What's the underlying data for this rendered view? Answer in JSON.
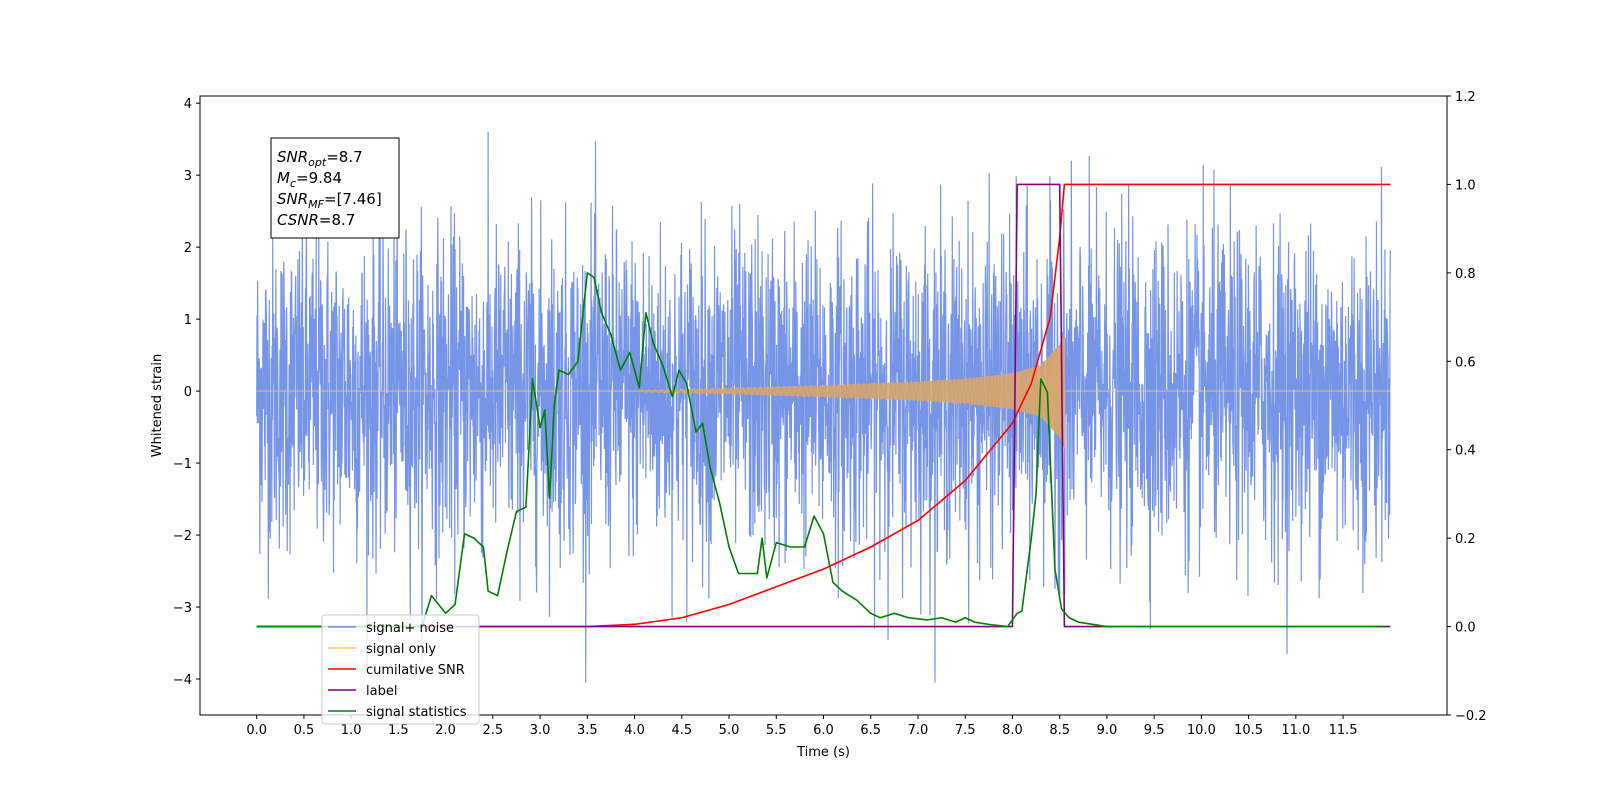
{
  "chart_data": {
    "type": "line",
    "xlabel": "Time (s)",
    "ylabel": "Whitened strain",
    "xlim": [
      -0.6,
      12.6
    ],
    "ylim": [
      -4.5,
      4.1
    ],
    "ylim_right": [
      -0.2,
      1.2
    ],
    "x_ticks": [
      "0.0",
      "0.5",
      "1.0",
      "1.5",
      "2.0",
      "2.5",
      "3.0",
      "3.5",
      "4.0",
      "4.5",
      "5.0",
      "5.5",
      "6.0",
      "6.5",
      "7.0",
      "7.5",
      "8.0",
      "8.5",
      "9.0",
      "9.5",
      "10.0",
      "10.5",
      "11.0",
      "11.5"
    ],
    "y_ticks_left": [
      "4",
      "3",
      "2",
      "1",
      "0",
      "−1",
      "−2",
      "−3",
      "−4"
    ],
    "y_ticks_right": [
      "1.2",
      "1.0",
      "0.8",
      "0.6",
      "0.4",
      "0.2",
      "0.0",
      "−0.2"
    ],
    "info_box": [
      {
        "main": "SNR",
        "sub": "opt",
        "value": "=8.7"
      },
      {
        "main": "M",
        "sub": "c",
        "value": "=9.84"
      },
      {
        "main": "SNR",
        "sub": "MF",
        "value": "=[7.46]"
      },
      {
        "main": "CSNR",
        "sub": "",
        "value": "=8.7"
      }
    ],
    "legend": [
      {
        "label": "signal+ noise",
        "color": "#6f8fe6"
      },
      {
        "label": "signal only",
        "color": "#f5c46a"
      },
      {
        "label": "cumilative SNR",
        "color": "#ff0000"
      },
      {
        "label": "label",
        "color": "#800080"
      },
      {
        "label": "signal statistics",
        "color": "#008000"
      }
    ],
    "series": [
      {
        "name": "signal+ noise",
        "axis": "left",
        "color": "#6f8fe6",
        "x_range": [
          0.0,
          12.0
        ],
        "typical_amplitude": 1.1,
        "peak_range": [
          -4.05,
          3.7
        ]
      },
      {
        "name": "signal only",
        "axis": "left",
        "color": "#f5c46a",
        "x_start": 0.0,
        "x_end": 12.0,
        "chirp_start": 4.0,
        "merger": 8.55,
        "envelope": {
          "x": [
            4.0,
            5.0,
            6.0,
            7.0,
            7.5,
            8.0,
            8.3,
            8.5,
            8.55
          ],
          "y": [
            0.01,
            0.04,
            0.08,
            0.13,
            0.17,
            0.25,
            0.36,
            0.65,
            0.8
          ]
        }
      },
      {
        "name": "cumilative SNR",
        "axis": "right",
        "color": "#ff0000",
        "x": [
          0.0,
          3.5,
          4.0,
          4.5,
          5.0,
          5.5,
          6.0,
          6.5,
          7.0,
          7.5,
          8.0,
          8.2,
          8.4,
          8.5,
          8.55,
          12.0
        ],
        "y": [
          0.0,
          0.0,
          0.005,
          0.02,
          0.05,
          0.09,
          0.13,
          0.18,
          0.24,
          0.33,
          0.46,
          0.55,
          0.7,
          0.88,
          1.0,
          1.0
        ]
      },
      {
        "name": "label",
        "axis": "right",
        "color": "#800080",
        "x": [
          0.0,
          8.0,
          8.05,
          8.5,
          8.55,
          12.0
        ],
        "y": [
          0.0,
          0.0,
          1.0,
          1.0,
          0.0,
          0.0
        ]
      },
      {
        "name": "signal statistics",
        "axis": "right",
        "color": "#008000",
        "x": [
          0.0,
          1.0,
          1.5,
          1.75,
          1.85,
          2.0,
          2.1,
          2.2,
          2.3,
          2.4,
          2.45,
          2.55,
          2.65,
          2.75,
          2.85,
          2.92,
          3.0,
          3.05,
          3.1,
          3.15,
          3.2,
          3.3,
          3.4,
          3.5,
          3.57,
          3.65,
          3.75,
          3.85,
          3.95,
          4.05,
          4.12,
          4.2,
          4.3,
          4.4,
          4.47,
          4.55,
          4.65,
          4.72,
          4.8,
          4.9,
          5.0,
          5.1,
          5.2,
          5.3,
          5.35,
          5.4,
          5.5,
          5.65,
          5.8,
          5.9,
          6.0,
          6.1,
          6.2,
          6.35,
          6.5,
          6.6,
          6.75,
          6.9,
          7.1,
          7.25,
          7.4,
          7.5,
          7.6,
          7.75,
          7.95,
          8.05,
          8.1,
          8.2,
          8.25,
          8.3,
          8.37,
          8.45,
          8.52,
          8.6,
          8.7,
          9.0,
          11.0,
          11.95
        ],
        "y": [
          0.0,
          0.0,
          0.0,
          0.0,
          0.07,
          0.03,
          0.05,
          0.21,
          0.2,
          0.18,
          0.08,
          0.07,
          0.17,
          0.26,
          0.27,
          0.56,
          0.45,
          0.49,
          0.29,
          0.5,
          0.58,
          0.57,
          0.6,
          0.8,
          0.79,
          0.71,
          0.66,
          0.58,
          0.62,
          0.54,
          0.71,
          0.64,
          0.59,
          0.52,
          0.58,
          0.55,
          0.44,
          0.46,
          0.36,
          0.28,
          0.18,
          0.12,
          0.12,
          0.12,
          0.2,
          0.11,
          0.19,
          0.18,
          0.18,
          0.25,
          0.21,
          0.1,
          0.08,
          0.06,
          0.03,
          0.02,
          0.03,
          0.02,
          0.015,
          0.02,
          0.01,
          0.02,
          0.01,
          0.005,
          0.0,
          0.03,
          0.035,
          0.2,
          0.3,
          0.56,
          0.53,
          0.13,
          0.04,
          0.02,
          0.01,
          0.0,
          0.0,
          0.0
        ]
      }
    ]
  }
}
